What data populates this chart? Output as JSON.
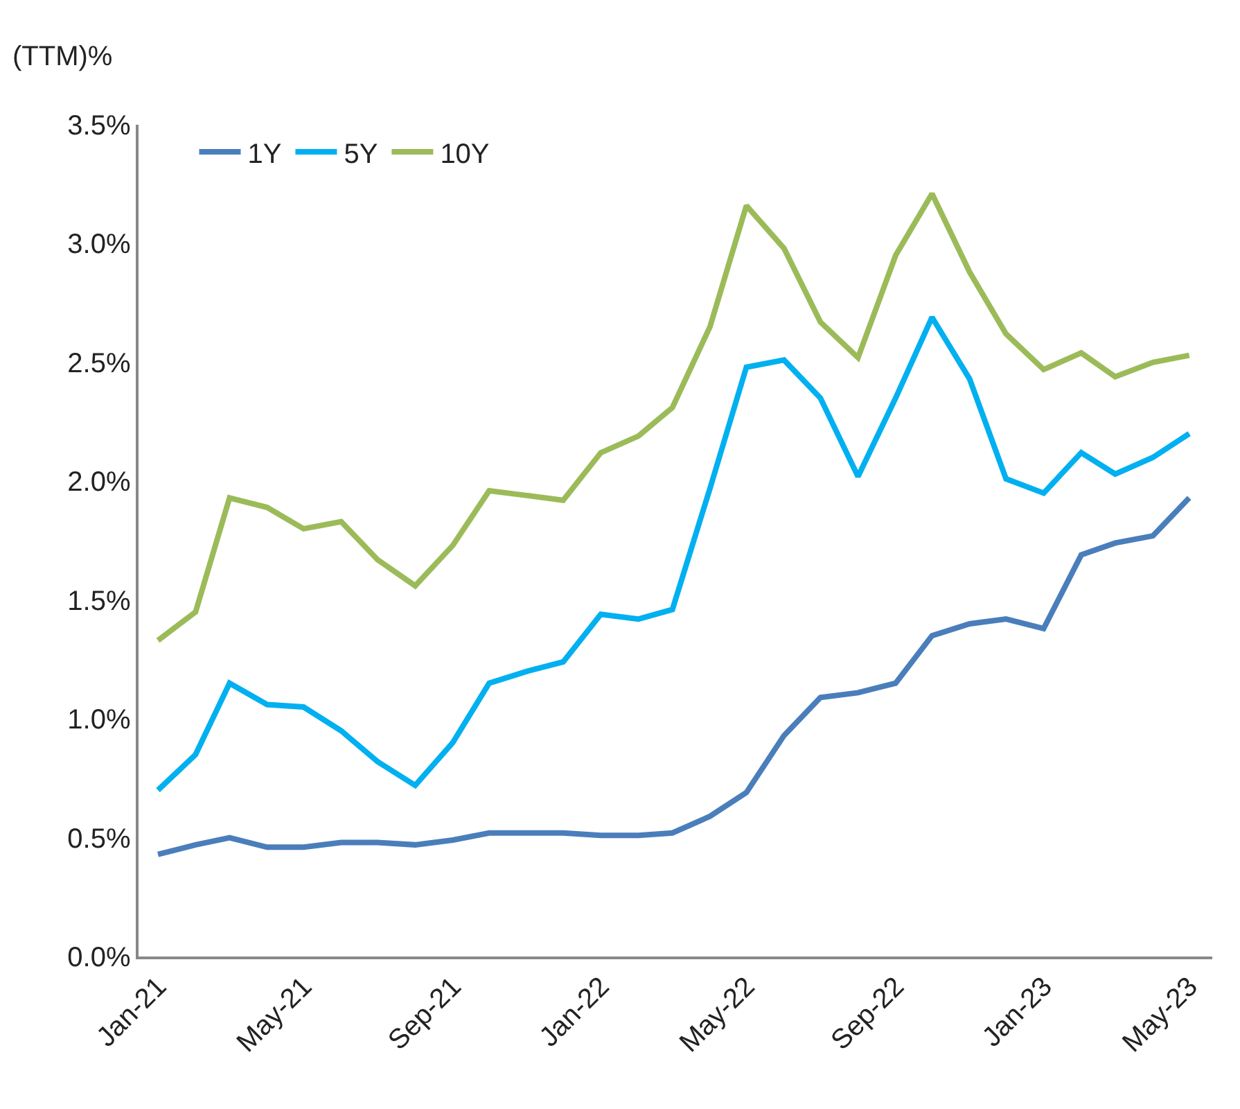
{
  "chart_data": {
    "type": "line",
    "ylabel": "(TTM)%",
    "x": [
      "2021-01",
      "2021-02",
      "2021-03",
      "2021-04",
      "2021-05",
      "2021-06",
      "2021-07",
      "2021-08",
      "2021-09",
      "2021-10",
      "2021-11",
      "2021-12",
      "2022-01",
      "2022-02",
      "2022-03",
      "2022-04",
      "2022-05",
      "2022-06",
      "2022-07",
      "2022-08",
      "2022-09",
      "2022-10",
      "2022-11",
      "2022-12",
      "2023-01",
      "2023-02",
      "2023-03",
      "2023-04",
      "2023-05"
    ],
    "series": [
      {
        "name": "1Y",
        "color": "#4a7ebb",
        "values": [
          0.43,
          0.47,
          0.5,
          0.46,
          0.46,
          0.48,
          0.48,
          0.47,
          0.49,
          0.52,
          0.52,
          0.52,
          0.51,
          0.51,
          0.52,
          0.59,
          0.69,
          0.93,
          1.09,
          1.11,
          1.15,
          1.35,
          1.4,
          1.42,
          1.38,
          1.69,
          1.74,
          1.77,
          1.93
        ]
      },
      {
        "name": "5Y",
        "color": "#00b0f0",
        "values": [
          0.7,
          0.85,
          1.15,
          1.06,
          1.05,
          0.95,
          0.82,
          0.72,
          0.9,
          1.15,
          1.2,
          1.24,
          1.44,
          1.42,
          1.46,
          1.97,
          2.48,
          2.51,
          2.35,
          2.02,
          2.35,
          2.69,
          2.43,
          2.01,
          1.95,
          2.12,
          2.03,
          2.1,
          2.2
        ]
      },
      {
        "name": "10Y",
        "color": "#9bbb59",
        "values": [
          1.33,
          1.45,
          1.93,
          1.89,
          1.8,
          1.83,
          1.67,
          1.56,
          1.73,
          1.96,
          1.94,
          1.92,
          2.12,
          2.19,
          2.31,
          2.65,
          3.16,
          2.98,
          2.67,
          2.52,
          2.95,
          3.21,
          2.88,
          2.62,
          2.47,
          2.54,
          2.44,
          2.5,
          2.53
        ]
      }
    ],
    "xlim": [
      "2020-12-16",
      "2023-05-20"
    ],
    "xticks": [
      {
        "value": "2021-01",
        "label": "Jan-21"
      },
      {
        "value": "2021-05",
        "label": "May-21"
      },
      {
        "value": "2021-09",
        "label": "Sep-21"
      },
      {
        "value": "2022-01",
        "label": "Jan-22"
      },
      {
        "value": "2022-05",
        "label": "May-22"
      },
      {
        "value": "2022-09",
        "label": "Sep-22"
      },
      {
        "value": "2023-01",
        "label": "Jan-23"
      },
      {
        "value": "2023-05",
        "label": "May-23"
      }
    ],
    "ylim": [
      0,
      3.5
    ],
    "yticks": [
      {
        "value": 0,
        "label": "0.0%"
      },
      {
        "value": 0.5,
        "label": "0.5%"
      },
      {
        "value": 1,
        "label": "1.0%"
      },
      {
        "value": 1.5,
        "label": "1.5%"
      },
      {
        "value": 2,
        "label": "2.0%"
      },
      {
        "value": 2.5,
        "label": "2.5%"
      },
      {
        "value": 3,
        "label": "3.0%"
      },
      {
        "value": 3.5,
        "label": "3.5%"
      }
    ],
    "legend": "top left",
    "marker": "none",
    "line_style": "solid"
  }
}
